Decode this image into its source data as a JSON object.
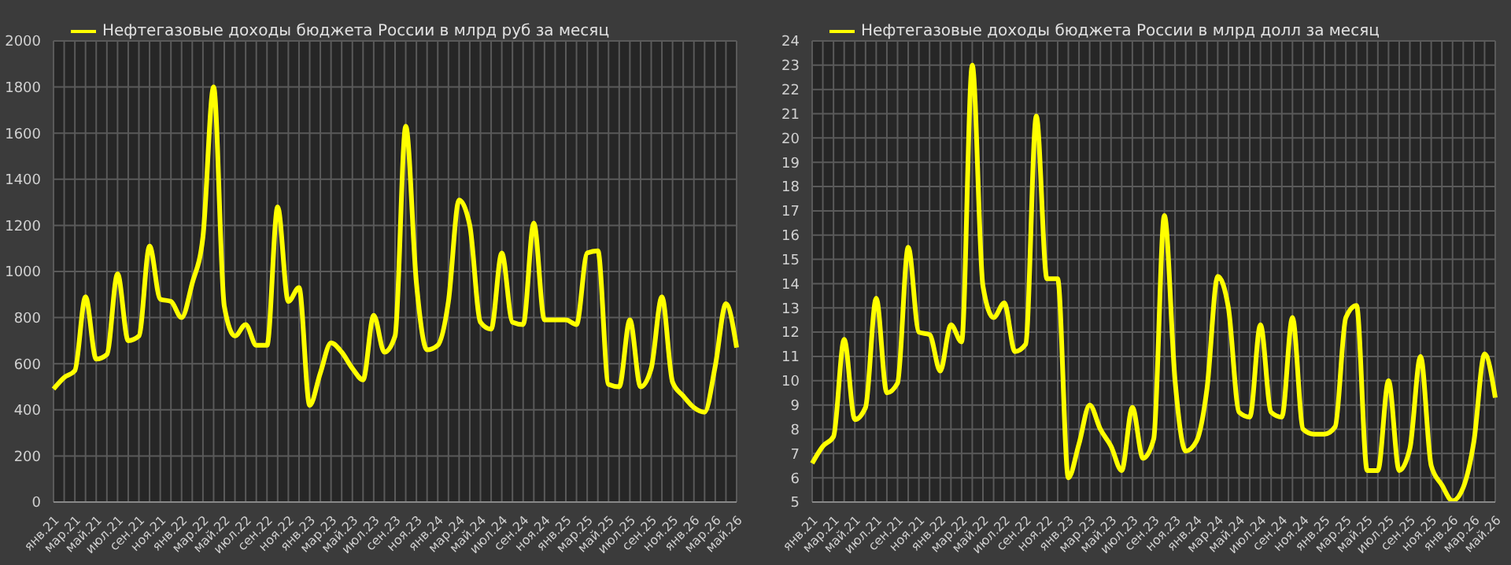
{
  "chart_data": [
    {
      "type": "line",
      "categories": [
        "янв.21",
        null,
        "мар.21",
        null,
        "май.21",
        null,
        "июл.21",
        null,
        "сен.21",
        null,
        "ноя.21",
        null,
        "янв.22",
        null,
        "мар.22",
        null,
        "май.22",
        null,
        "июл.22",
        null,
        "сен.22",
        null,
        "ноя.22",
        null,
        "янв.23",
        null,
        "мар.23",
        null,
        "май.23",
        null,
        "июл.23",
        null,
        "сен.23",
        null,
        "ноя.23",
        null,
        "янв.24",
        null,
        "мар.24",
        null,
        "май.24",
        null,
        "июл.24",
        null,
        "сен.24",
        null,
        "ноя.24",
        null,
        "янв.25",
        null,
        "мар.25",
        null,
        "май.25",
        null,
        "июл.25",
        null,
        "сен.25",
        null,
        "ноя.25",
        null,
        "янв.26",
        null,
        "мар.26",
        null,
        "май.26"
      ],
      "series": [
        {
          "name": "Нефтегазовые доходы бюджета России в млрд руб за месяц",
          "color": "#ffff00",
          "values": [
            490,
            540,
            570,
            890,
            620,
            640,
            990,
            700,
            720,
            1110,
            880,
            870,
            800,
            950,
            1150,
            1800,
            850,
            720,
            770,
            680,
            680,
            1280,
            870,
            930,
            420,
            560,
            690,
            650,
            580,
            530,
            810,
            650,
            720,
            1630,
            950,
            660,
            680,
            870,
            1310,
            1200,
            780,
            750,
            1080,
            780,
            770,
            1210,
            790,
            790,
            790,
            770,
            1080,
            1090,
            510,
            500,
            790,
            500,
            580,
            890,
            520,
            460,
            410,
            390,
            590,
            860,
            670
          ]
        }
      ],
      "ylim": [
        0,
        2000
      ],
      "yticks": [
        0,
        200,
        400,
        600,
        800,
        1000,
        1200,
        1400,
        1600,
        1800,
        2000
      ],
      "grid": true,
      "legend": "top left"
    },
    {
      "type": "line",
      "categories": [
        "янв.21",
        null,
        "мар.21",
        null,
        "май.21",
        null,
        "июл.21",
        null,
        "сен.21",
        null,
        "ноя.21",
        null,
        "янв.22",
        null,
        "мар.22",
        null,
        "май.22",
        null,
        "июл.22",
        null,
        "сен.22",
        null,
        "ноя.22",
        null,
        "янв.23",
        null,
        "мар.23",
        null,
        "май.23",
        null,
        "июл.23",
        null,
        "сен.23",
        null,
        "ноя.23",
        null,
        "янв.24",
        null,
        "мар.24",
        null,
        "май.24",
        null,
        "июл.24",
        null,
        "сен.24",
        null,
        "ноя.24",
        null,
        "янв.25",
        null,
        "мар.25",
        null,
        "май.25",
        null,
        "июл.25",
        null,
        "сен.25",
        null,
        "ноя.25",
        null,
        "янв.26",
        null,
        "мар.26",
        null,
        "май.26"
      ],
      "series": [
        {
          "name": "Нефтегазовые доходы бюджета России в млрд долл за месяц",
          "color": "#ffff00",
          "values": [
            6.6,
            7.3,
            7.7,
            11.7,
            8.4,
            8.9,
            13.4,
            9.5,
            9.9,
            15.5,
            12.0,
            11.9,
            10.4,
            12.3,
            11.6,
            23.0,
            13.9,
            12.6,
            13.2,
            11.2,
            11.5,
            20.9,
            14.2,
            14.2,
            6.0,
            7.4,
            9.0,
            8.0,
            7.3,
            6.3,
            8.9,
            6.8,
            7.6,
            16.8,
            10.0,
            7.1,
            7.5,
            9.7,
            14.3,
            13.0,
            8.7,
            8.5,
            12.3,
            8.7,
            8.5,
            12.6,
            8.0,
            7.8,
            7.8,
            8.1,
            12.6,
            13.1,
            6.3,
            6.3,
            10.0,
            6.3,
            7.2,
            11.0,
            6.5,
            5.7,
            5.05,
            5.6,
            7.5,
            11.1,
            9.3
          ]
        }
      ],
      "ylim": [
        5,
        24
      ],
      "yticks": [
        5,
        6,
        7,
        8,
        9,
        10,
        11,
        12,
        13,
        14,
        15,
        16,
        17,
        18,
        19,
        20,
        21,
        22,
        23,
        24
      ],
      "grid": true,
      "legend": "top left"
    }
  ]
}
